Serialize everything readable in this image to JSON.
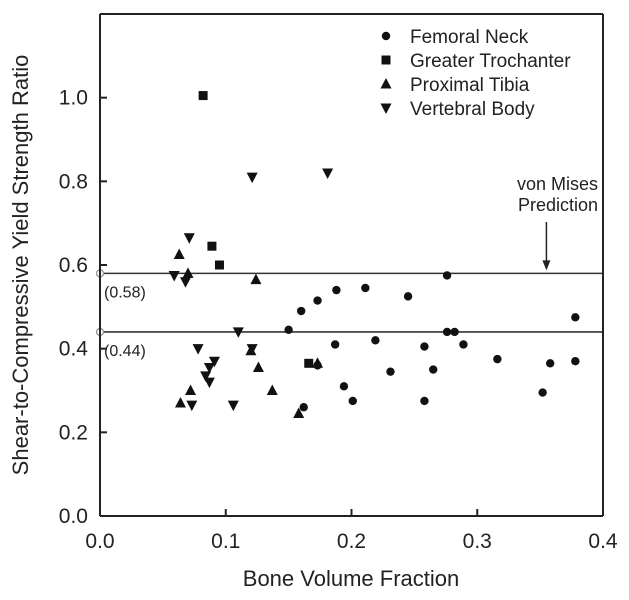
{
  "chart_data": {
    "type": "scatter",
    "title": "",
    "xlabel": "Bone Volume Fraction",
    "ylabel": "Shear-to-Compressive Yield Strength Ratio",
    "xlim": [
      0.0,
      0.4
    ],
    "ylim": [
      0.0,
      1.2
    ],
    "xticks": [
      "0.0",
      "0.1",
      "0.2",
      "0.3",
      "0.4"
    ],
    "yticks": [
      "0.0",
      "0.2",
      "0.4",
      "0.6",
      "0.8",
      "1.0"
    ],
    "grid": false,
    "legend_position": "top-right",
    "series": [
      {
        "name": "Femoral Neck",
        "marker": "circle",
        "points": [
          [
            0.15,
            0.445
          ],
          [
            0.16,
            0.49
          ],
          [
            0.173,
            0.515
          ],
          [
            0.188,
            0.54
          ],
          [
            0.211,
            0.545
          ],
          [
            0.245,
            0.525
          ],
          [
            0.276,
            0.575
          ],
          [
            0.187,
            0.41
          ],
          [
            0.219,
            0.42
          ],
          [
            0.276,
            0.44
          ],
          [
            0.282,
            0.44
          ],
          [
            0.258,
            0.405
          ],
          [
            0.289,
            0.41
          ],
          [
            0.316,
            0.375
          ],
          [
            0.378,
            0.475
          ],
          [
            0.358,
            0.365
          ],
          [
            0.378,
            0.37
          ],
          [
            0.231,
            0.345
          ],
          [
            0.265,
            0.35
          ],
          [
            0.173,
            0.36
          ],
          [
            0.194,
            0.31
          ],
          [
            0.201,
            0.275
          ],
          [
            0.162,
            0.26
          ],
          [
            0.258,
            0.275
          ],
          [
            0.352,
            0.295
          ]
        ]
      },
      {
        "name": "Greater Trochanter",
        "marker": "square",
        "points": [
          [
            0.082,
            1.005
          ],
          [
            0.089,
            0.645
          ],
          [
            0.095,
            0.6
          ],
          [
            0.166,
            0.365
          ]
        ]
      },
      {
        "name": "Proximal Tibia",
        "marker": "triangle-up",
        "points": [
          [
            0.063,
            0.625
          ],
          [
            0.07,
            0.58
          ],
          [
            0.124,
            0.565
          ],
          [
            0.12,
            0.395
          ],
          [
            0.126,
            0.355
          ],
          [
            0.173,
            0.365
          ],
          [
            0.137,
            0.3
          ],
          [
            0.064,
            0.27
          ],
          [
            0.072,
            0.3
          ],
          [
            0.158,
            0.245
          ]
        ]
      },
      {
        "name": "Vertebral Body",
        "marker": "triangle-down",
        "points": [
          [
            0.121,
            0.81
          ],
          [
            0.181,
            0.82
          ],
          [
            0.071,
            0.665
          ],
          [
            0.059,
            0.575
          ],
          [
            0.068,
            0.56
          ],
          [
            0.11,
            0.44
          ],
          [
            0.078,
            0.4
          ],
          [
            0.121,
            0.4
          ],
          [
            0.091,
            0.37
          ],
          [
            0.087,
            0.355
          ],
          [
            0.084,
            0.335
          ],
          [
            0.087,
            0.32
          ],
          [
            0.073,
            0.265
          ],
          [
            0.106,
            0.265
          ]
        ]
      }
    ],
    "reference_lines": [
      {
        "y": 0.58,
        "label": "(0.58)"
      },
      {
        "y": 0.44,
        "label": "(0.44)"
      }
    ],
    "annotation": {
      "lines": [
        "von Mises",
        "Prediction"
      ],
      "x": 0.355,
      "y": 0.58
    }
  }
}
